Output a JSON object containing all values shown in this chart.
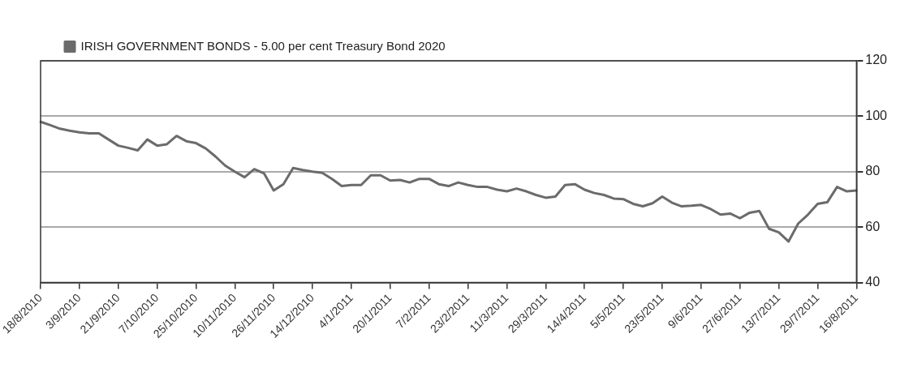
{
  "chart_data": {
    "type": "line",
    "categories": [
      "18/8/2010",
      null,
      null,
      null,
      "3/9/2010",
      null,
      null,
      null,
      "21/9/2010",
      null,
      null,
      null,
      "7/10/2010",
      null,
      null,
      null,
      "25/10/2010",
      null,
      null,
      null,
      "10/11/2010",
      null,
      null,
      null,
      "26/11/2010",
      null,
      null,
      null,
      "14/12/2010",
      null,
      null,
      null,
      "4/1/2011",
      null,
      null,
      null,
      "20/1/2011",
      null,
      null,
      null,
      "7/2/2011",
      null,
      null,
      null,
      "23/2/2011",
      null,
      null,
      null,
      "11/3/2011",
      null,
      null,
      null,
      "29/3/2011",
      null,
      null,
      null,
      "14/4/2011",
      null,
      null,
      null,
      "5/5/2011",
      null,
      null,
      null,
      "23/5/2011",
      null,
      null,
      null,
      "9/6/2011",
      null,
      null,
      null,
      "27/6/2011",
      null,
      null,
      null,
      "13/7/2011",
      null,
      null,
      null,
      "29/7/2011",
      null,
      null,
      null,
      "16/8/2011"
    ],
    "series": [
      {
        "name": "IRISH GOVERNMENT BONDS - 5.00 per cent Treasury Bond 2020",
        "color": "#6b6b6b",
        "values": [
          98,
          96.8,
          95.5,
          94.8,
          94.2,
          93.8,
          93.8,
          91.6,
          89.4,
          88.6,
          87.7,
          91.6,
          89.4,
          89.9,
          92.9,
          91,
          90.3,
          88.4,
          85.5,
          82.2,
          80,
          78,
          80.9,
          79.4,
          73.2,
          75.5,
          81.3,
          80.6,
          80,
          79.6,
          77.4,
          74.8,
          75.2,
          75.2,
          78.7,
          78.7,
          76.8,
          77,
          76.1,
          77.4,
          77.4,
          75.5,
          74.8,
          76.1,
          75.2,
          74.5,
          74.5,
          73.5,
          72.9,
          73.9,
          72.9,
          71.6,
          70.6,
          71,
          75.2,
          75.5,
          73.5,
          72.3,
          71.6,
          70.3,
          70.1,
          68.4,
          67.5,
          68.6,
          71,
          68.8,
          67.5,
          67.7,
          68,
          66.5,
          64.5,
          64.9,
          63.2,
          65.2,
          65.8,
          59.4,
          58.1,
          54.8,
          61.3,
          64.5,
          68.4,
          69,
          74.5,
          72.9,
          73.2
        ]
      }
    ],
    "ylim": [
      40,
      120
    ],
    "yticks": [
      40,
      60,
      80,
      100,
      120
    ],
    "grid": "y",
    "legend": "top left",
    "marker": "none",
    "line_style": "solid"
  }
}
